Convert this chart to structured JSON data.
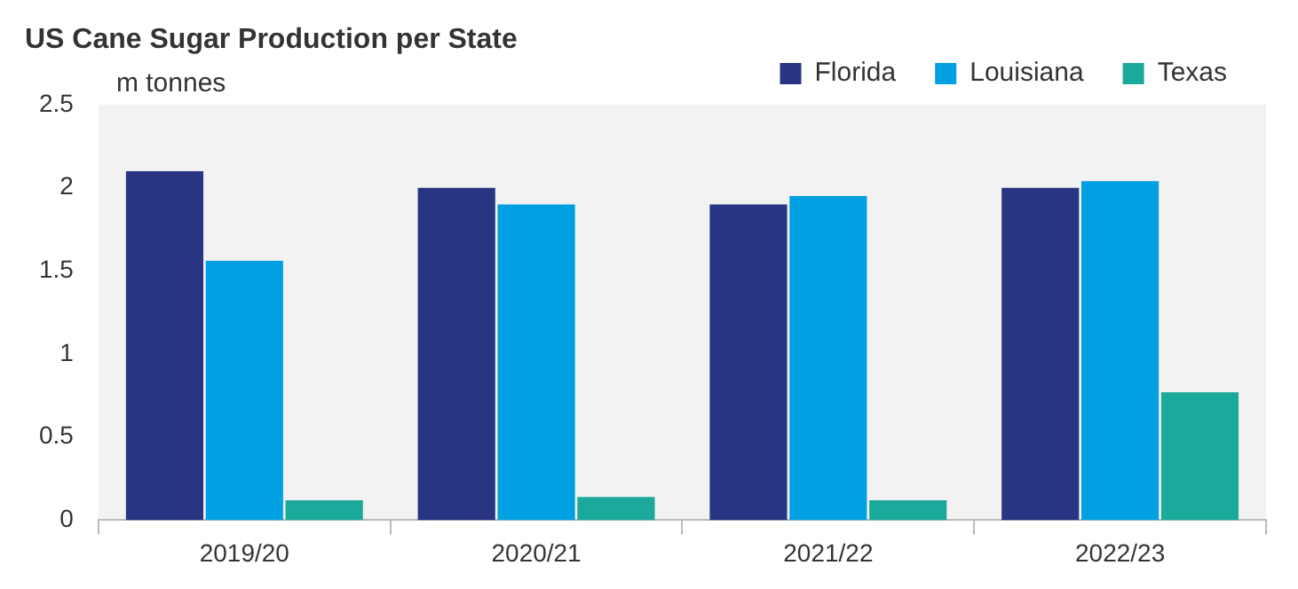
{
  "chart_data": {
    "type": "bar",
    "title": "US Cane Sugar Production per State",
    "ylabel": "m tonnes",
    "categories": [
      "2019/20",
      "2020/21",
      "2021/22",
      "2022/23"
    ],
    "series": [
      {
        "name": "Florida",
        "color": "#283583",
        "values": [
          2.1,
          2.0,
          1.9,
          2.0
        ]
      },
      {
        "name": "Louisiana",
        "color": "#00a0e3",
        "values": [
          1.56,
          1.9,
          1.95,
          2.04
        ]
      },
      {
        "name": "Texas",
        "color": "#1aa99a",
        "values": [
          0.12,
          0.14,
          0.12,
          0.77
        ]
      }
    ],
    "ylim": [
      0,
      2.5
    ],
    "yticks": [
      0,
      0.5,
      1,
      1.5,
      2,
      2.5
    ],
    "grid": false,
    "legend": "top right"
  }
}
